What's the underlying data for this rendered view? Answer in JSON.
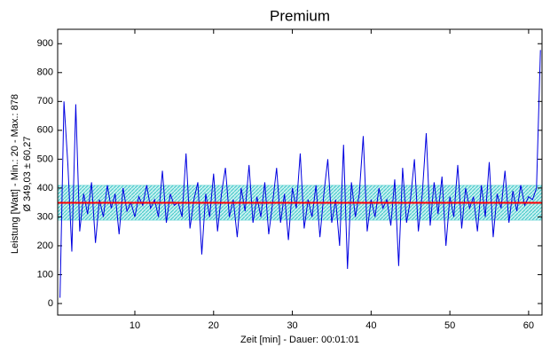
{
  "chart_data": {
    "type": "line",
    "title": "Premium",
    "x_label": "Zeit [min] - Dauer: 00:01:01",
    "y_label": [
      "Leistung [Watt] - Min.: 20 - Max.: 878",
      "Ø 349,03 ± 60,27"
    ],
    "mean": 349.03,
    "std": 60.27,
    "mean_color": "#ff0000",
    "band_color": "#40c8c8",
    "xlim": [
      0.2,
      61.7
    ],
    "ylim": [
      -40,
      950
    ],
    "xticks": [
      10,
      20,
      30,
      40,
      50,
      60
    ],
    "yticks": [
      0,
      100,
      200,
      300,
      400,
      500,
      600,
      700,
      800,
      900
    ],
    "grid": false,
    "series": [
      {
        "color": "#0000e0",
        "x": [
          0.5,
          1,
          1.5,
          2,
          2.5,
          3,
          3.5,
          4,
          4.5,
          5,
          5.5,
          6,
          6.5,
          7,
          7.5,
          8,
          8.5,
          9,
          9.5,
          10,
          10.5,
          11,
          11.5,
          12,
          12.5,
          13,
          13.5,
          14,
          14.5,
          15,
          15.5,
          16,
          16.5,
          17,
          17.5,
          18,
          18.5,
          19,
          19.5,
          20,
          20.5,
          21,
          21.5,
          22,
          22.5,
          23,
          23.5,
          24,
          24.5,
          25,
          25.5,
          26,
          26.5,
          27,
          27.5,
          28,
          28.5,
          29,
          29.5,
          30,
          30.5,
          31,
          31.5,
          32,
          32.5,
          33,
          33.5,
          34,
          34.5,
          35,
          35.5,
          36,
          36.5,
          37,
          37.5,
          38,
          38.5,
          39,
          39.5,
          40,
          40.5,
          41,
          41.5,
          42,
          42.5,
          43,
          43.5,
          44,
          44.5,
          45,
          45.5,
          46,
          46.5,
          47,
          47.5,
          48,
          48.5,
          49,
          49.5,
          50,
          50.5,
          51,
          51.5,
          52,
          52.5,
          53,
          53.5,
          54,
          54.5,
          55,
          55.5,
          56,
          56.5,
          57,
          57.5,
          58,
          58.5,
          59,
          59.5,
          60,
          60.5,
          61,
          61.5
        ],
        "values": [
          20,
          700,
          480,
          180,
          690,
          250,
          380,
          310,
          420,
          210,
          360,
          300,
          410,
          330,
          380,
          240,
          400,
          320,
          350,
          300,
          370,
          340,
          410,
          330,
          360,
          300,
          460,
          280,
          380,
          340,
          350,
          300,
          520,
          260,
          360,
          420,
          170,
          380,
          300,
          450,
          250,
          380,
          470,
          300,
          360,
          230,
          400,
          320,
          480,
          280,
          370,
          300,
          420,
          240,
          350,
          470,
          280,
          380,
          220,
          400,
          330,
          520,
          260,
          360,
          300,
          410,
          230,
          380,
          500,
          280,
          360,
          200,
          550,
          120,
          420,
          300,
          380,
          580,
          250,
          360,
          300,
          400,
          330,
          360,
          270,
          430,
          130,
          470,
          280,
          360,
          500,
          250,
          380,
          590,
          270,
          420,
          310,
          440,
          200,
          370,
          300,
          480,
          260,
          400,
          330,
          370,
          250,
          410,
          300,
          490,
          230,
          380,
          330,
          460,
          280,
          390,
          320,
          410,
          340,
          370,
          360,
          400,
          878
        ]
      }
    ]
  }
}
